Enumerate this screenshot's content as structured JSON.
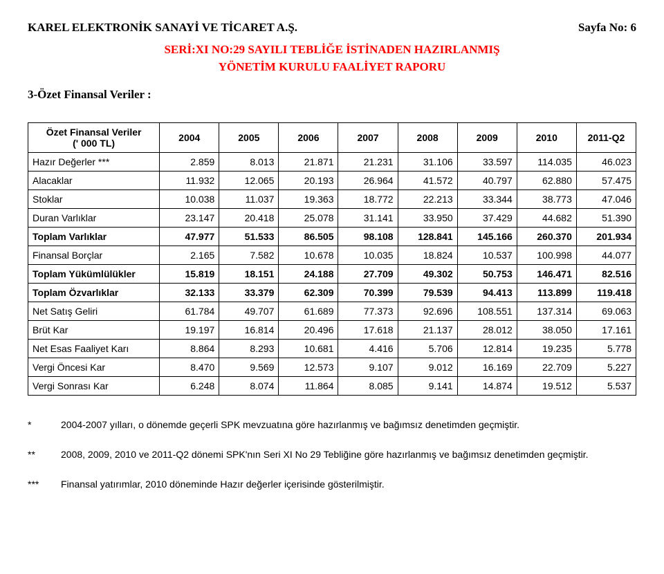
{
  "header": {
    "company": "KAREL ELEKTRONİK SANAYİ VE TİCARET A.Ş.",
    "page_label": "Sayfa No: 6"
  },
  "subtitle": {
    "line1": "SERİ:XI NO:29 SAYILI TEBLİĞE İSTİNADEN HAZIRLANMIŞ",
    "line2": "YÖNETİM KURULU FAALİYET RAPORU"
  },
  "section_title": "3-Özet Finansal Veriler :",
  "table": {
    "head_label_line1": "Özet Finansal Veriler",
    "head_label_line2": "(' 000 TL)",
    "columns": [
      "2004",
      "2005",
      "2006",
      "2007",
      "2008",
      "2009",
      "2010",
      "2011-Q2"
    ],
    "rows": [
      {
        "label": "Hazır Değerler ***",
        "bold": false,
        "values": [
          "2.859",
          "8.013",
          "21.871",
          "21.231",
          "31.106",
          "33.597",
          "114.035",
          "46.023"
        ]
      },
      {
        "label": "Alacaklar",
        "bold": false,
        "values": [
          "11.932",
          "12.065",
          "20.193",
          "26.964",
          "41.572",
          "40.797",
          "62.880",
          "57.475"
        ]
      },
      {
        "label": "Stoklar",
        "bold": false,
        "values": [
          "10.038",
          "11.037",
          "19.363",
          "18.772",
          "22.213",
          "33.344",
          "38.773",
          "47.046"
        ]
      },
      {
        "label": "Duran Varlıklar",
        "bold": false,
        "values": [
          "23.147",
          "20.418",
          "25.078",
          "31.141",
          "33.950",
          "37.429",
          "44.682",
          "51.390"
        ]
      },
      {
        "label": "Toplam Varlıklar",
        "bold": true,
        "values": [
          "47.977",
          "51.533",
          "86.505",
          "98.108",
          "128.841",
          "145.166",
          "260.370",
          "201.934"
        ]
      },
      {
        "label": "Finansal Borçlar",
        "bold": false,
        "values": [
          "2.165",
          "7.582",
          "10.678",
          "10.035",
          "18.824",
          "10.537",
          "100.998",
          "44.077"
        ]
      },
      {
        "label": "Toplam Yükümlülükler",
        "bold": true,
        "values": [
          "15.819",
          "18.151",
          "24.188",
          "27.709",
          "49.302",
          "50.753",
          "146.471",
          "82.516"
        ]
      },
      {
        "label": "Toplam Özvarlıklar",
        "bold": true,
        "values": [
          "32.133",
          "33.379",
          "62.309",
          "70.399",
          "79.539",
          "94.413",
          "113.899",
          "119.418"
        ]
      },
      {
        "label": "Net Satış Geliri",
        "bold": false,
        "values": [
          "61.784",
          "49.707",
          "61.689",
          "77.373",
          "92.696",
          "108.551",
          "137.314",
          "69.063"
        ]
      },
      {
        "label": "Brüt Kar",
        "bold": false,
        "values": [
          "19.197",
          "16.814",
          "20.496",
          "17.618",
          "21.137",
          "28.012",
          "38.050",
          "17.161"
        ]
      },
      {
        "label": "Net Esas Faaliyet Karı",
        "bold": false,
        "values": [
          "8.864",
          "8.293",
          "10.681",
          "4.416",
          "5.706",
          "12.814",
          "19.235",
          "5.778"
        ]
      },
      {
        "label": "Vergi Öncesi Kar",
        "bold": false,
        "values": [
          "8.470",
          "9.569",
          "12.573",
          "9.107",
          "9.012",
          "16.169",
          "22.709",
          "5.227"
        ]
      },
      {
        "label": "Vergi Sonrası Kar",
        "bold": false,
        "values": [
          "6.248",
          "8.074",
          "11.864",
          "8.085",
          "9.141",
          "14.874",
          "19.512",
          "5.537"
        ]
      }
    ]
  },
  "footnotes": [
    {
      "mark": "*",
      "text": "2004-2007 yılları, o dönemde geçerli SPK mevzuatına göre hazırlanmış ve bağımsız denetimden geçmiştir."
    },
    {
      "mark": "**",
      "text": "2008, 2009, 2010 ve 2011-Q2 dönemi SPK'nın Seri XI No 29 Tebliğine göre hazırlanmış ve bağımsız denetimden geçmiştir."
    },
    {
      "mark": "***",
      "text": "Finansal yatırımlar, 2010 döneminde Hazır değerler içerisinde gösterilmiştir."
    }
  ],
  "style": {
    "accent_color": "#ff0000",
    "text_color": "#000000",
    "background": "#ffffff",
    "border_color": "#000000",
    "body_font": "Times New Roman",
    "table_font": "Arial",
    "title_fontsize_pt": 13,
    "table_fontsize_pt": 10,
    "footnote_fontsize_pt": 10
  }
}
